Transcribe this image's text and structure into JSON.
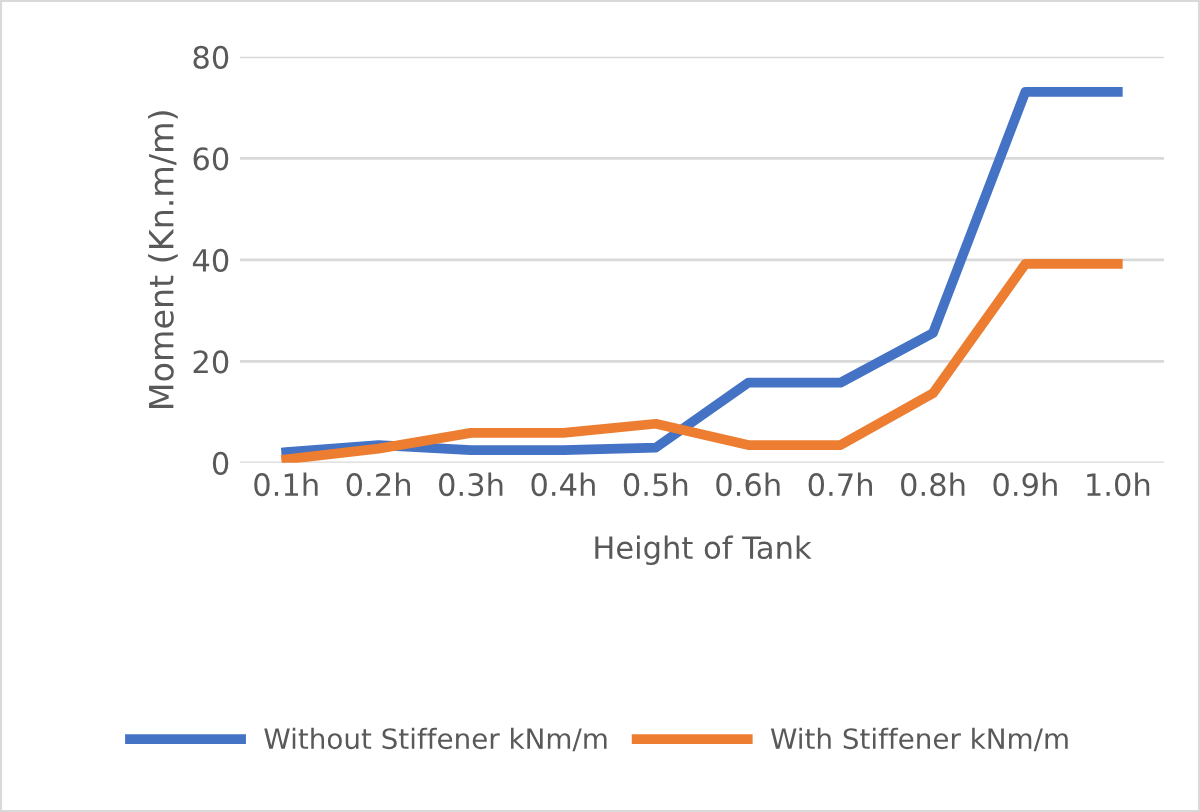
{
  "chart_data": {
    "type": "line",
    "xlabel": "Height of Tank",
    "ylabel": "Moment (Kn.m/m)",
    "categories": [
      "0.1h",
      "0.2h",
      "0.3h",
      "0.4h",
      "0.5h",
      "0.6h",
      "0.7h",
      "0.8h",
      "0.9h",
      "1.0h"
    ],
    "series": [
      {
        "name": "Without Stiffener kNm/m",
        "color": "#4472c4",
        "values": [
          2.1,
          3.5,
          2.5,
          2.5,
          3,
          15.8,
          15.8,
          25.6,
          73.1,
          73.1
        ]
      },
      {
        "name": "With Stiffener kNm/m",
        "color": "#ed7d31",
        "values": [
          0.7,
          2.8,
          5.9,
          5.9,
          7.7,
          3.5,
          3.5,
          13.7,
          39.2,
          39.2
        ]
      }
    ],
    "ylim": [
      0,
      80
    ],
    "yticks": [
      0,
      20,
      40,
      60,
      80
    ],
    "grid": "y",
    "legend": "bottom"
  }
}
